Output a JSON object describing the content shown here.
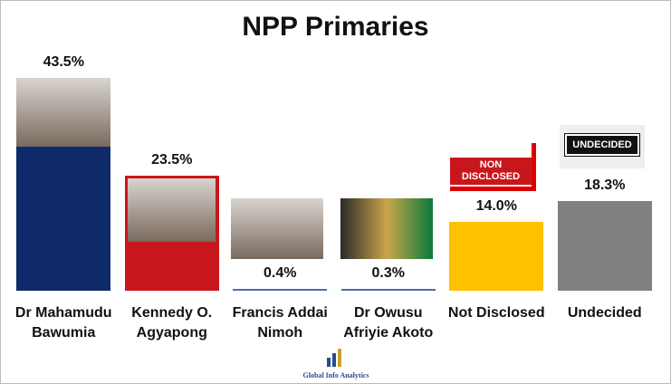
{
  "chart_data": {
    "type": "bar",
    "title": "NPP Primaries",
    "categories": [
      "Dr Mahamudu Bawumia",
      "Kennedy O. Agyapong",
      "Francis Addai Nimoh",
      "Dr Owusu Afriyie Akoto",
      "Not Disclosed",
      "Undecided"
    ],
    "values": [
      43.5,
      23.5,
      0.4,
      0.3,
      14.0,
      18.3
    ],
    "value_labels": [
      "43.5%",
      "23.5%",
      "0.4%",
      "0.3%",
      "14.0%",
      "18.3%"
    ],
    "colors": [
      "#0e2a6a",
      "#c8171c",
      "#4a70a8",
      "#4a70a8",
      "#ffc000",
      "#808080"
    ],
    "annotations": [
      "NON DISCLOSED",
      "UNDECIDED"
    ],
    "source": "Global Info Analytics"
  }
}
